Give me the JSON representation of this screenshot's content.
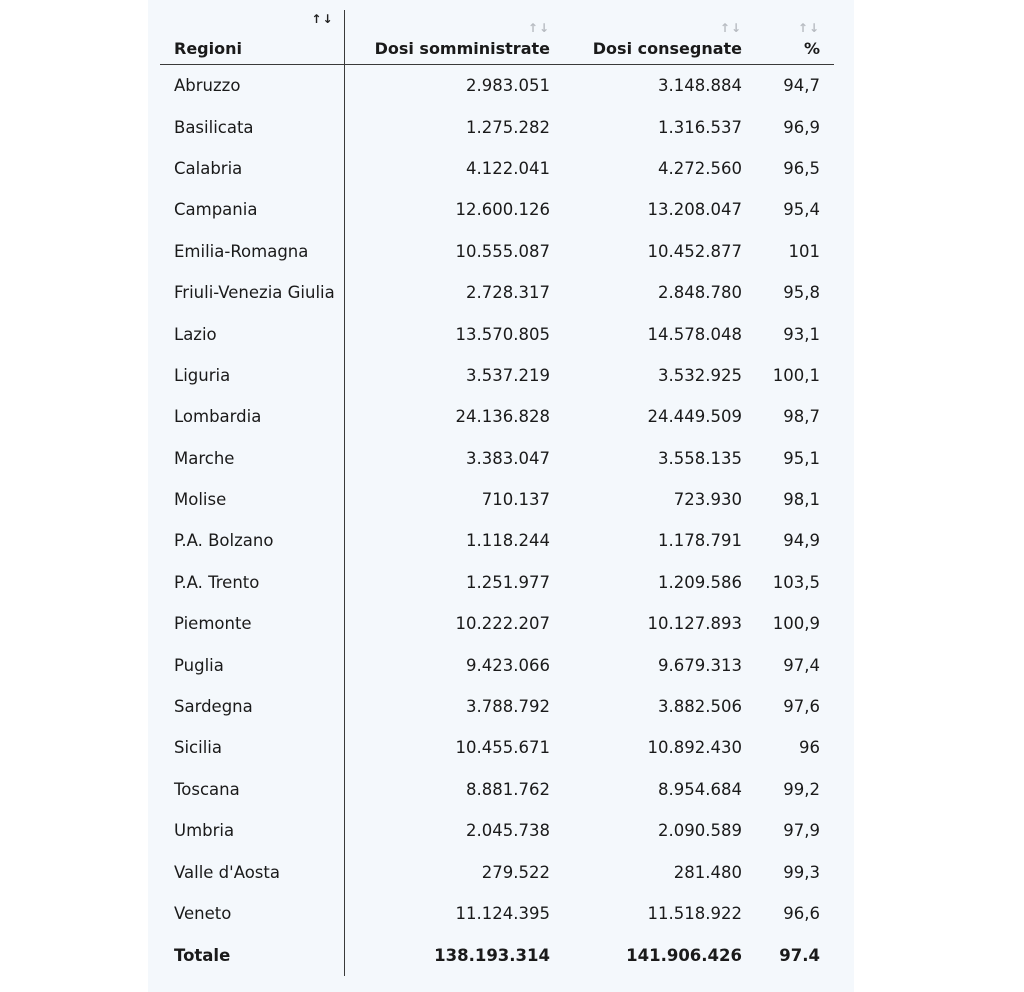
{
  "table": {
    "headers": {
      "regioni": "Regioni",
      "somministrate": "Dosi somministrate",
      "consegnate": "Dosi consegnate",
      "percent": "%"
    },
    "sort_glyph": "↑↓",
    "rows": [
      {
        "regione": "Abruzzo",
        "somministrate": "2.983.051",
        "consegnate": "3.148.884",
        "percent": "94,7"
      },
      {
        "regione": "Basilicata",
        "somministrate": "1.275.282",
        "consegnate": "1.316.537",
        "percent": "96,9"
      },
      {
        "regione": "Calabria",
        "somministrate": "4.122.041",
        "consegnate": "4.272.560",
        "percent": "96,5"
      },
      {
        "regione": "Campania",
        "somministrate": "12.600.126",
        "consegnate": "13.208.047",
        "percent": "95,4"
      },
      {
        "regione": "Emilia-Romagna",
        "somministrate": "10.555.087",
        "consegnate": "10.452.877",
        "percent": "101"
      },
      {
        "regione": "Friuli-Venezia Giulia",
        "somministrate": "2.728.317",
        "consegnate": "2.848.780",
        "percent": "95,8"
      },
      {
        "regione": "Lazio",
        "somministrate": "13.570.805",
        "consegnate": "14.578.048",
        "percent": "93,1"
      },
      {
        "regione": "Liguria",
        "somministrate": "3.537.219",
        "consegnate": "3.532.925",
        "percent": "100,1"
      },
      {
        "regione": "Lombardia",
        "somministrate": "24.136.828",
        "consegnate": "24.449.509",
        "percent": "98,7"
      },
      {
        "regione": "Marche",
        "somministrate": "3.383.047",
        "consegnate": "3.558.135",
        "percent": "95,1"
      },
      {
        "regione": "Molise",
        "somministrate": "710.137",
        "consegnate": "723.930",
        "percent": "98,1"
      },
      {
        "regione": "P.A. Bolzano",
        "somministrate": "1.118.244",
        "consegnate": "1.178.791",
        "percent": "94,9"
      },
      {
        "regione": "P.A. Trento",
        "somministrate": "1.251.977",
        "consegnate": "1.209.586",
        "percent": "103,5"
      },
      {
        "regione": "Piemonte",
        "somministrate": "10.222.207",
        "consegnate": "10.127.893",
        "percent": "100,9"
      },
      {
        "regione": "Puglia",
        "somministrate": "9.423.066",
        "consegnate": "9.679.313",
        "percent": "97,4"
      },
      {
        "regione": "Sardegna",
        "somministrate": "3.788.792",
        "consegnate": "3.882.506",
        "percent": "97,6"
      },
      {
        "regione": "Sicilia",
        "somministrate": "10.455.671",
        "consegnate": "10.892.430",
        "percent": "96"
      },
      {
        "regione": "Toscana",
        "somministrate": "8.881.762",
        "consegnate": "8.954.684",
        "percent": "99,2"
      },
      {
        "regione": "Umbria",
        "somministrate": "2.045.738",
        "consegnate": "2.090.589",
        "percent": "97,9"
      },
      {
        "regione": "Valle d'Aosta",
        "somministrate": "279.522",
        "consegnate": "281.480",
        "percent": "99,3"
      },
      {
        "regione": "Veneto",
        "somministrate": "11.124.395",
        "consegnate": "11.518.922",
        "percent": "96,6"
      }
    ],
    "total": {
      "regione": "Totale",
      "somministrate": "138.193.314",
      "consegnate": "141.906.426",
      "percent": "97.4"
    }
  }
}
